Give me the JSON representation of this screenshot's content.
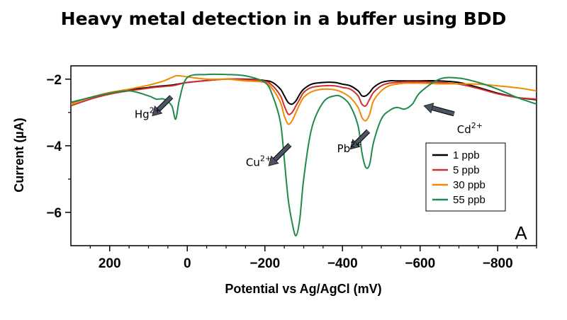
{
  "chart_data": {
    "type": "line",
    "title": "Heavy metal detection in a buffer using BDD",
    "xlabel": "Potential vs Ag/AgCl (mV)",
    "ylabel": "Current (µA)",
    "xlim": [
      300,
      -900
    ],
    "ylim": [
      -7.0,
      -1.6
    ],
    "x_reversed": true,
    "x_ticks": [
      200,
      0,
      -200,
      -400,
      -600,
      -800
    ],
    "x_tick_labels": [
      "200",
      "0",
      "−200",
      "−400",
      "−600",
      "−800"
    ],
    "y_ticks": [
      -2,
      -4,
      -6
    ],
    "y_tick_labels": [
      "−2",
      "−4",
      "−6"
    ],
    "grid": false,
    "legend_position": "right",
    "panel_label": "A",
    "annotations": [
      {
        "ion": "Hg",
        "charge": "2+",
        "x": 90,
        "y": -3.1
      },
      {
        "ion": "Cu",
        "charge": "2+",
        "x": -210,
        "y": -4.6
      },
      {
        "ion": "Pb",
        "charge": "2+",
        "x": -420,
        "y": -4.1
      },
      {
        "ion": "Cd",
        "charge": "2+",
        "x": -610,
        "y": -2.8
      }
    ],
    "x": [
      300,
      250,
      200,
      150,
      100,
      80,
      60,
      40,
      30,
      20,
      0,
      -50,
      -100,
      -150,
      -200,
      -220,
      -240,
      -250,
      -260,
      -270,
      -280,
      -290,
      -300,
      -320,
      -350,
      -380,
      -400,
      -420,
      -440,
      -450,
      -460,
      -470,
      -480,
      -500,
      -520,
      -540,
      -560,
      -580,
      -600,
      -650,
      -700,
      -750,
      -800,
      -850,
      -900
    ],
    "series": [
      {
        "name": "1 ppb",
        "color": "#000000",
        "values": [
          -2.7,
          -2.55,
          -2.42,
          -2.32,
          -2.25,
          -2.22,
          -2.2,
          -2.18,
          -2.16,
          -2.14,
          -2.1,
          -2.04,
          -2.0,
          -2.0,
          -2.04,
          -2.1,
          -2.3,
          -2.5,
          -2.7,
          -2.75,
          -2.65,
          -2.45,
          -2.3,
          -2.15,
          -2.1,
          -2.1,
          -2.15,
          -2.2,
          -2.35,
          -2.5,
          -2.5,
          -2.4,
          -2.25,
          -2.1,
          -2.05,
          -2.05,
          -2.05,
          -2.05,
          -2.05,
          -2.05,
          -2.1,
          -2.25,
          -2.42,
          -2.55,
          -2.62
        ]
      },
      {
        "name": "5 ppb",
        "color": "#d32f2f",
        "values": [
          -2.8,
          -2.6,
          -2.45,
          -2.35,
          -2.27,
          -2.24,
          -2.22,
          -2.2,
          -2.18,
          -2.15,
          -2.1,
          -2.04,
          -2.0,
          -2.01,
          -2.06,
          -2.2,
          -2.5,
          -2.8,
          -3.05,
          -3.0,
          -2.8,
          -2.6,
          -2.4,
          -2.25,
          -2.2,
          -2.2,
          -2.25,
          -2.3,
          -2.5,
          -2.75,
          -2.8,
          -2.6,
          -2.4,
          -2.2,
          -2.12,
          -2.1,
          -2.08,
          -2.08,
          -2.08,
          -2.1,
          -2.15,
          -2.28,
          -2.44,
          -2.55,
          -2.6
        ]
      },
      {
        "name": "30 ppb",
        "color": "#f08a00",
        "values": [
          -2.75,
          -2.55,
          -2.4,
          -2.3,
          -2.18,
          -2.12,
          -2.05,
          -1.95,
          -1.9,
          -1.9,
          -1.93,
          -2.0,
          -2.0,
          -2.05,
          -2.1,
          -2.3,
          -2.7,
          -3.1,
          -3.35,
          -3.25,
          -3.0,
          -2.75,
          -2.55,
          -2.38,
          -2.3,
          -2.32,
          -2.4,
          -2.55,
          -2.85,
          -3.15,
          -3.25,
          -3.05,
          -2.65,
          -2.35,
          -2.2,
          -2.15,
          -2.12,
          -2.12,
          -2.12,
          -2.14,
          -2.14,
          -2.15,
          -2.2,
          -2.26,
          -2.35
        ]
      },
      {
        "name": "55 ppb",
        "color": "#1e8a4c",
        "values": [
          -2.7,
          -2.55,
          -2.42,
          -2.35,
          -2.5,
          -2.6,
          -2.6,
          -2.8,
          -3.2,
          -2.6,
          -1.95,
          -1.86,
          -1.86,
          -1.9,
          -2.1,
          -2.5,
          -3.3,
          -4.4,
          -5.6,
          -6.3,
          -6.7,
          -6.2,
          -5.0,
          -3.5,
          -2.7,
          -2.5,
          -2.55,
          -2.8,
          -3.4,
          -4.2,
          -4.65,
          -4.55,
          -3.9,
          -3.2,
          -2.95,
          -2.85,
          -2.9,
          -2.75,
          -2.4,
          -2.0,
          -1.97,
          -2.1,
          -2.3,
          -2.55,
          -2.75
        ]
      }
    ]
  }
}
